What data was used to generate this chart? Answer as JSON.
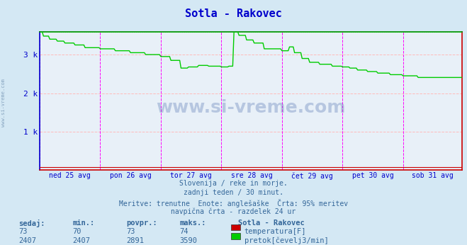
{
  "title": "Sotla - Rakovec",
  "bg_color": "#d4e8f4",
  "plot_bg_color": "#e8f0f8",
  "grid_color_h": "#ffbbbb",
  "grid_color_v": "#cccccc",
  "vline_color": "#ff00ff",
  "left_border_color": "#0000cc",
  "top_border_color": "#008800",
  "right_border_color": "#cc0000",
  "bottom_border_color": "#cc0000",
  "x_labels": [
    "ned 25 avg",
    "pon 26 avg",
    "tor 27 avg",
    "sre 28 avg",
    "čet 29 avg",
    "pet 30 avg",
    "sob 31 avg"
  ],
  "x_positions": [
    0,
    48,
    96,
    144,
    192,
    240,
    288
  ],
  "y_ticks": [
    0,
    1000,
    2000,
    3000
  ],
  "y_tick_labels": [
    "",
    "1 k",
    "2 k",
    "3 k"
  ],
  "ymax": 3590,
  "ymin": 0,
  "tick_color": "#0000cc",
  "title_color": "#0000cc",
  "watermark": "www.si-vreme.com",
  "subtitle_lines": [
    "Slovenija / reke in morje.",
    "zadnji teden / 30 minut.",
    "Meritve: trenutne  Enote: anglešaške  Črta: 95% meritev",
    "navpična črta - razdelek 24 ur"
  ],
  "legend_title": "Sotla - Rakovec",
  "legend": [
    {
      "label": "temperatura[F]",
      "color": "#cc0000"
    },
    {
      "label": "pretok[čevelj3/min]",
      "color": "#00cc00"
    }
  ],
  "stats_headers": [
    "sedaj:",
    "min.:",
    "povpr.:",
    "maks.:"
  ],
  "stats_temp": [
    73,
    70,
    73,
    74
  ],
  "stats_pretok": [
    2407,
    2407,
    2891,
    3590
  ],
  "temp_color": "#cc0000",
  "pretok_color": "#00cc00",
  "total_points": 336,
  "dashed_max_color": "#00cc00",
  "side_watermark_color": "#6688aa",
  "text_color": "#336699"
}
